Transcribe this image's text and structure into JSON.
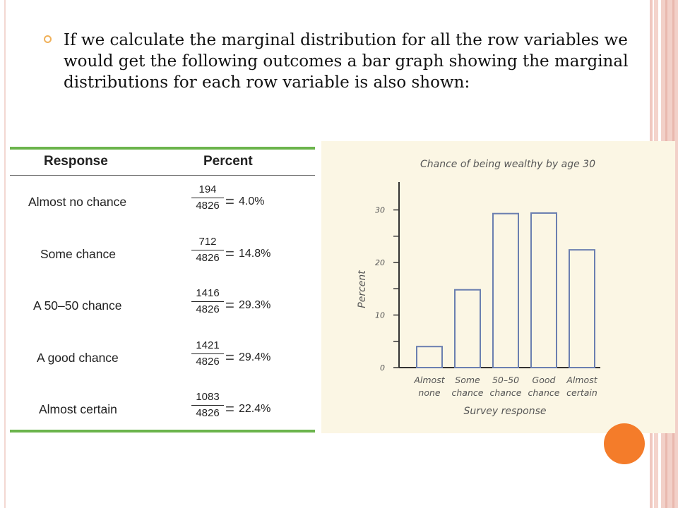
{
  "slide": {
    "bullet_text": "If we calculate the marginal distribution for all the row variables we would get the following outcomes a bar graph showing the marginal distributions for each row variable is also shown:"
  },
  "table": {
    "headers": [
      "Response",
      "Percent"
    ],
    "rows": [
      {
        "response": "Almost no chance",
        "numerator": "194",
        "denominator": "4826",
        "percent": "4.0%"
      },
      {
        "response": "Some chance",
        "numerator": "712",
        "denominator": "4826",
        "percent": "14.8%"
      },
      {
        "response": "A 50–50 chance",
        "numerator": "1416",
        "denominator": "4826",
        "percent": "29.3%"
      },
      {
        "response": "A good chance",
        "numerator": "1421",
        "denominator": "4826",
        "percent": "29.4%"
      },
      {
        "response": "Almost certain",
        "numerator": "1083",
        "denominator": "4826",
        "percent": "22.4%"
      }
    ],
    "equals_sign": "="
  },
  "chart_data": {
    "type": "bar",
    "title": "Chance of being wealthy by age 30",
    "xlabel": "Survey response",
    "ylabel": "Percent",
    "categories": [
      [
        "Almost",
        "none"
      ],
      [
        "Some",
        "chance"
      ],
      [
        "50–50",
        "chance"
      ],
      [
        "Good",
        "chance"
      ],
      [
        "Almost",
        "certain"
      ]
    ],
    "values": [
      4.0,
      14.8,
      29.3,
      29.4,
      22.4
    ],
    "yticks": [
      0,
      10,
      20,
      30
    ],
    "ylim": [
      0,
      35
    ],
    "grid": false
  },
  "colors": {
    "accent_orange": "#f47c2a",
    "table_rule_green": "#6bb44c",
    "chart_background": "#fbf6e4",
    "bar_stroke": "#6b7fb0"
  }
}
